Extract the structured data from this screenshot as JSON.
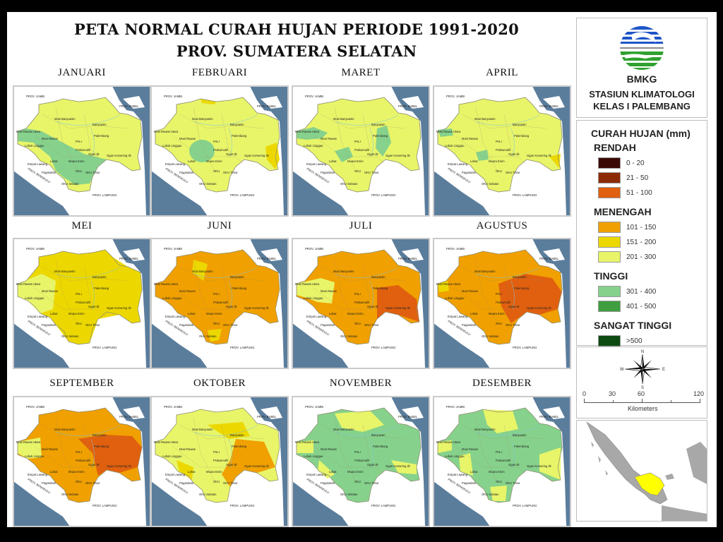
{
  "header": {
    "title_line1": "PETA NORMAL CURAH HUJAN PERIODE 1991-2020",
    "title_line2": "PROV. SUMATERA SELATAN"
  },
  "months": [
    {
      "label": "JANUARI",
      "dominant": "201 - 300",
      "notes": "green (301-400) band across west-central"
    },
    {
      "label": "FEBRUARI",
      "dominant": "201 - 300",
      "notes": "green spot around Lahat; yellow at Ogan Komering Ilir edge"
    },
    {
      "label": "MARET",
      "dominant": "201 - 300",
      "notes": "green patches west and central"
    },
    {
      "label": "APRIL",
      "dominant": "201 - 300",
      "notes": "small green patches"
    },
    {
      "label": "MEI",
      "dominant": "151 - 200",
      "notes": "lighter yellow in west"
    },
    {
      "label": "JUNI",
      "dominant": "101 - 150",
      "notes": "orange dominant, yellow pockets"
    },
    {
      "label": "JULI",
      "dominant": "101 - 150",
      "notes": "dark orange (51-100) in east"
    },
    {
      "label": "AGUSTUS",
      "dominant": "101 - 150",
      "notes": "dark orange (51-100) east-central"
    },
    {
      "label": "SEPTEMBER",
      "dominant": "101 - 150",
      "notes": "dark orange (51-100) east"
    },
    {
      "label": "OKTOBER",
      "dominant": "201 - 300",
      "notes": "mixed yellow/orange"
    },
    {
      "label": "NOVEMBER",
      "dominant": "301 - 400",
      "notes": "green with yellow areas"
    },
    {
      "label": "DESEMBER",
      "dominant": "301 - 400",
      "notes": "green with yellow north and edges"
    }
  ],
  "map_labels": {
    "prov_jambi": "PROV. JAMBI",
    "prov_babel": "PROV. BABEL",
    "prov_bengkulu": "PROV. BENGKULU",
    "prov_lampung": "PROV. LAMPUNG",
    "regencies": [
      "Musi Banyuasin",
      "Banyuasin",
      "Musi Rawas Utara",
      "Palembang",
      "Musi Rawas",
      "Lubuk Linggau",
      "PALI",
      "Prabumulih",
      "Ogan Ilir",
      "Ogan Komering Ilir",
      "Empat Lawang",
      "Lahat",
      "Muara Enim",
      "Pagaralam",
      "OKU",
      "OKU Timur",
      "OKU Selatan"
    ]
  },
  "logo": {
    "name": "BMKG",
    "line1": "STASIUN KLIMATOLOGI",
    "line2": "KELAS I PALEMBANG"
  },
  "legend": {
    "title": "CURAH HUJAN (mm)",
    "groups": [
      {
        "name": "RENDAH",
        "items": [
          {
            "label": "0 - 20",
            "color": "#3b0a05"
          },
          {
            "label": "21 - 50",
            "color": "#8c2a05"
          },
          {
            "label": "51 - 100",
            "color": "#e0600f"
          }
        ]
      },
      {
        "name": "MENENGAH",
        "items": [
          {
            "label": "101 - 150",
            "color": "#f0a000"
          },
          {
            "label": "151 - 200",
            "color": "#ecd800"
          },
          {
            "label": "201 - 300",
            "color": "#e8f569"
          }
        ]
      },
      {
        "name": "TINGGI",
        "items": [
          {
            "label": "301 - 400",
            "color": "#86d28c"
          },
          {
            "label": "401 - 500",
            "color": "#3f9e3f"
          }
        ]
      },
      {
        "name": "SANGAT TINGGI",
        "items": [
          {
            "label": ">500",
            "color": "#0d4a12"
          }
        ]
      }
    ]
  },
  "compass": {
    "n": "N",
    "s": "S",
    "e": "E",
    "w": "W"
  },
  "scale": {
    "ticks": [
      "0",
      "30",
      "60",
      "120"
    ],
    "unit": "Kilometers"
  },
  "colors": {
    "sea": "#5b7d9c",
    "land_outside": "#ffffff",
    "inset_land": "#a8a8a8",
    "inset_highlight": "#ffff00"
  }
}
